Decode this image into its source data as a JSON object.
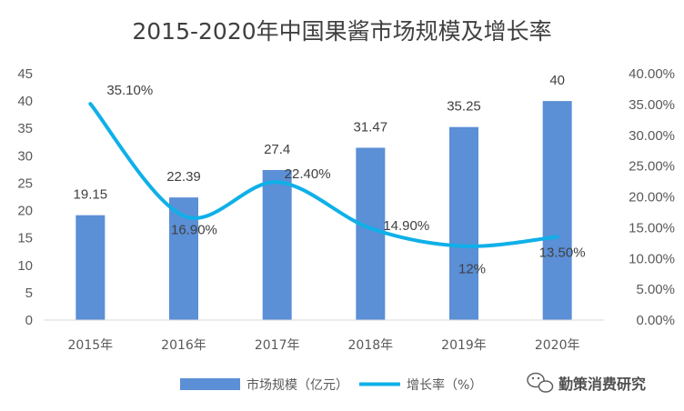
{
  "colors": {
    "bar": "#5B8FD6",
    "line": "#0FB0E8",
    "axis": "#D9D9D9",
    "text": "#595959"
  },
  "legend": {
    "bar_label": "市场规模（亿元）",
    "line_label": "增长率（%）",
    "position": "bottom"
  },
  "watermark": {
    "text": "勤策消费研究",
    "icon": "wechat-icon"
  },
  "chart_data": {
    "type": "bar",
    "title": "2015-2020年中国果酱市场规模及增长率",
    "categories": [
      "2015年",
      "2016年",
      "2017年",
      "2018年",
      "2019年",
      "2020年"
    ],
    "series": [
      {
        "name": "市场规模（亿元）",
        "type": "bar",
        "axis": "left",
        "values": [
          19.15,
          22.39,
          27.4,
          31.47,
          35.25,
          40
        ],
        "labels": [
          "19.15",
          "22.39",
          "27.4",
          "31.47",
          "35.25",
          "40"
        ]
      },
      {
        "name": "增长率（%）",
        "type": "line",
        "smooth": true,
        "axis": "right",
        "values": [
          35.1,
          16.9,
          22.4,
          14.9,
          12,
          13.5
        ],
        "labels": [
          "35.10%",
          "16.90%",
          "22.40%",
          "14.90%",
          "12%",
          "13.50%"
        ]
      }
    ],
    "y_left": {
      "min": 0,
      "max": 45,
      "step": 5,
      "tick_labels": [
        "0",
        "5",
        "10",
        "15",
        "20",
        "25",
        "30",
        "35",
        "40",
        "45"
      ]
    },
    "y_right": {
      "min": 0,
      "max": 40,
      "step": 5,
      "tick_labels": [
        "0.00%",
        "5.00%",
        "10.00%",
        "15.00%",
        "20.00%",
        "25.00%",
        "30.00%",
        "35.00%",
        "40.00%"
      ]
    },
    "grid": false
  }
}
